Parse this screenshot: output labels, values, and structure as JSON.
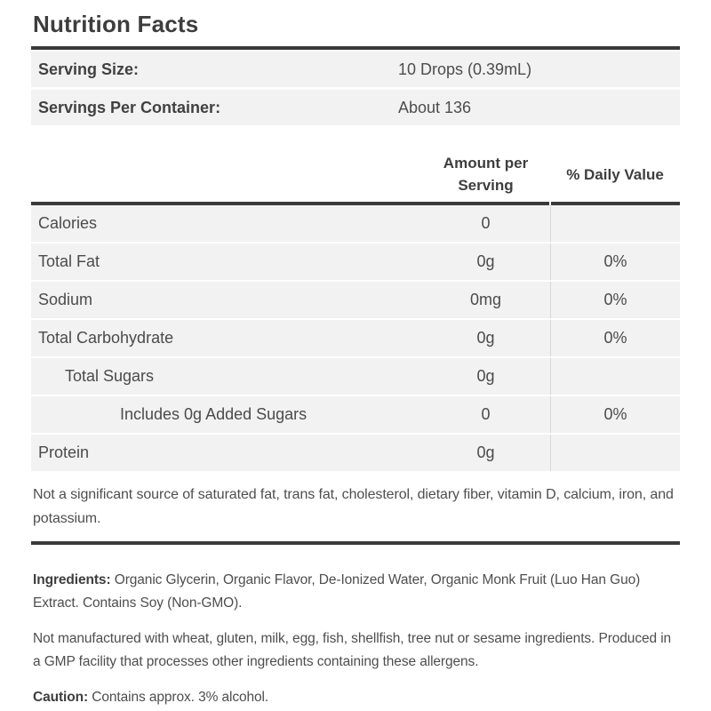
{
  "title": "Nutrition Facts",
  "serving_info": [
    {
      "label": "Serving Size:",
      "value": "10 Drops (0.39mL)"
    },
    {
      "label": "Servings Per Container:",
      "value": "About 136"
    }
  ],
  "table": {
    "amount_header": "Amount per Serving",
    "dv_header": "% Daily Value",
    "rows": [
      {
        "label": "Calories",
        "amount": "0",
        "dv": "",
        "indent": 0
      },
      {
        "label": "Total Fat",
        "amount": "0g",
        "dv": "0%",
        "indent": 0
      },
      {
        "label": "Sodium",
        "amount": "0mg",
        "dv": "0%",
        "indent": 0
      },
      {
        "label": "Total Carbohydrate",
        "amount": "0g",
        "dv": "0%",
        "indent": 0
      },
      {
        "label": "Total Sugars",
        "amount": "0g",
        "dv": "",
        "indent": 1
      },
      {
        "label": "Includes 0g Added Sugars",
        "amount": "0",
        "dv": "0%",
        "indent": 2
      },
      {
        "label": "Protein",
        "amount": "0g",
        "dv": "",
        "indent": 0
      }
    ]
  },
  "not_significant_note": "Not a significant source of saturated fat, trans fat, cholesterol, dietary fiber, vitamin D, calcium, iron, and potassium.",
  "ingredients": {
    "label": "Ingredients:",
    "text": "Organic Glycerin, Organic Flavor, De-Ionized Water, Organic Monk Fruit (Luo Han Guo) Extract. Contains Soy (Non-GMO)."
  },
  "allergen_note": "Not manufactured with wheat, gluten, milk, egg, fish, shellfish, tree nut or sesame ingredients. Produced in a GMP facility that processes other ingredients containing these allergens.",
  "caution": {
    "label": "Caution:",
    "text": "Contains approx. 3% alcohol."
  },
  "colors": {
    "rule": "#3a3a3a",
    "row_background": "#f2f2f2",
    "column_divider": "#d8d8d8",
    "text": "#4b4b4b"
  }
}
